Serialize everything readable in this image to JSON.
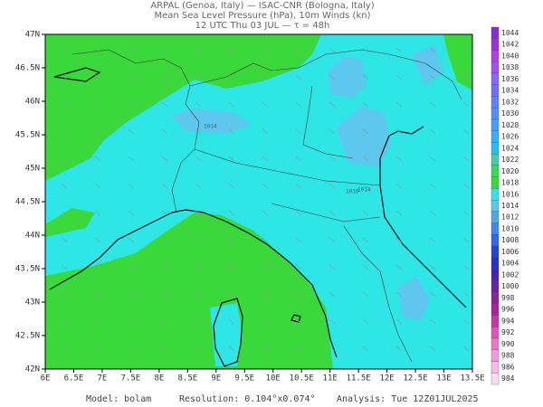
{
  "header": {
    "lines": [
      "ARPAL (Genoa, Italy)  —  ISAC-CNR (Bologna, Italy)",
      "Mean Sea Level Pressure (hPa), 10m Winds (kn)",
      "12 UTC Thu 03 JUL  —  τ = 48h"
    ]
  },
  "map": {
    "lat_labels": [
      "47N",
      "46.5N",
      "46N",
      "45.5N",
      "45N",
      "44.5N",
      "44N",
      "43.5N",
      "43N",
      "42.5N",
      "42N"
    ],
    "lon_labels": [
      "6E",
      "6.5E",
      "7E",
      "7.5E",
      "8E",
      "8.5E",
      "9E",
      "9.5E",
      "10E",
      "10.5E",
      "11E",
      "11.5E",
      "12E",
      "12.5E",
      "13E",
      "13.5E"
    ],
    "contour_labels": [
      "1016",
      "1014",
      "1014"
    ]
  },
  "colorbar": {
    "levels": [
      "1044",
      "1042",
      "1040",
      "1038",
      "1036",
      "1034",
      "1032",
      "1030",
      "1028",
      "1026",
      "1024",
      "1022",
      "1020",
      "1018",
      "1016",
      "1014",
      "1012",
      "1010",
      "1008",
      "1006",
      "1004",
      "1002",
      "1000",
      "998",
      "996",
      "994",
      "992",
      "990",
      "988",
      "986",
      "984"
    ]
  },
  "footer": {
    "model": "Model: bolam",
    "resolution": "Resolution: 0.104°x0.074°",
    "analysis": "Analysis: Tue 12Z01JUL2025"
  }
}
